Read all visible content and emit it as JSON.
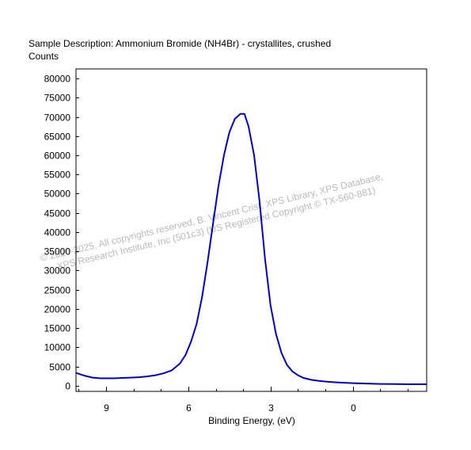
{
  "chart_data": {
    "type": "line",
    "title": "Sample Description:  Ammonium Bromide (NH4Br) - crystallites, crushed",
    "ylabel": "Counts",
    "xlabel": "Binding Energy, (eV)",
    "x_reversed": true,
    "xlim": [
      10.1,
      -2.7
    ],
    "ylim": [
      -1500,
      82500
    ],
    "x_ticks": [
      9,
      6,
      3,
      0
    ],
    "x_tick_labels": [
      "9",
      "6",
      "3",
      "0"
    ],
    "x_minor_step": 1,
    "y_ticks": [
      0,
      5000,
      10000,
      15000,
      20000,
      25000,
      30000,
      35000,
      40000,
      45000,
      50000,
      55000,
      60000,
      65000,
      70000,
      75000,
      80000
    ],
    "y_tick_labels": [
      "0",
      "5000",
      "10000",
      "15000",
      "20000",
      "25000",
      "30000",
      "35000",
      "40000",
      "45000",
      "50000",
      "55000",
      "60000",
      "65000",
      "70000",
      "75000",
      "80000"
    ],
    "grid": false,
    "line_color": "#0000cc",
    "series": [
      {
        "x": [
          10.1,
          9.8,
          9.5,
          9.2,
          9.0,
          8.7,
          8.4,
          8.1,
          7.8,
          7.5,
          7.2,
          6.9,
          6.6,
          6.3,
          6.1,
          5.9,
          5.7,
          5.5,
          5.3,
          5.1,
          4.9,
          4.7,
          4.5,
          4.3,
          4.1,
          3.95,
          3.8,
          3.6,
          3.4,
          3.2,
          3.0,
          2.8,
          2.6,
          2.4,
          2.2,
          2.0,
          1.8,
          1.5,
          1.2,
          0.9,
          0.6,
          0.3,
          0.0,
          -0.5,
          -1.0,
          -1.5,
          -2.0,
          -2.7
        ],
        "values": [
          3300,
          2600,
          2100,
          1900,
          1900,
          1900,
          2000,
          2100,
          2200,
          2400,
          2700,
          3200,
          4000,
          5800,
          8000,
          11500,
          16000,
          23000,
          32000,
          42000,
          52000,
          60000,
          66000,
          69500,
          70800,
          70800,
          67500,
          60000,
          48000,
          33000,
          21000,
          13500,
          8500,
          5400,
          3700,
          2700,
          2000,
          1500,
          1200,
          1000,
          850,
          750,
          650,
          550,
          450,
          400,
          350,
          350
        ]
      }
    ]
  },
  "watermark": {
    "line1": "©  2020-2025,  All copyrights reserved,   B. Vincent Crist,  XPS Library, XPS Database,",
    "line2": "XPS Research Institute, Inc (501c3)   (US Registered Copyright © TX-560-881)"
  }
}
